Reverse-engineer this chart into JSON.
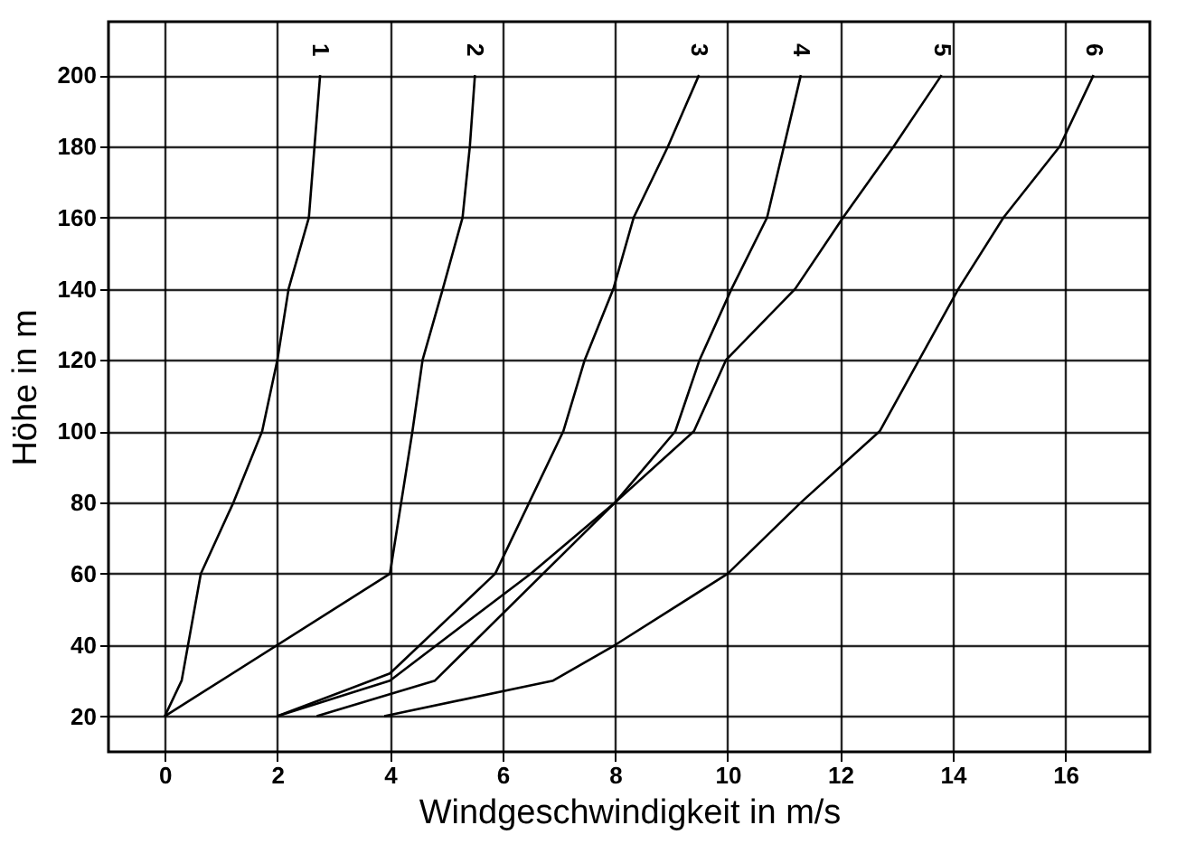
{
  "chart_data": {
    "type": "line",
    "xlabel": "Windgeschwindigkeit in m/s",
    "ylabel": "Höhe in m",
    "xlim": [
      -1,
      17.5
    ],
    "ylim": [
      10,
      215
    ],
    "xticks": [
      0,
      2,
      4,
      6,
      8,
      10,
      12,
      14,
      16
    ],
    "yticks": [
      20,
      40,
      60,
      80,
      100,
      120,
      140,
      160,
      180,
      200
    ],
    "grid": true,
    "legend": false,
    "line_style": "solid",
    "series": [
      {
        "name": "1",
        "color": "#000000",
        "x": [
          0,
          0.3,
          0.64,
          1.22,
          1.73,
          2.0,
          2.2,
          2.56,
          2.76
        ],
        "values": [
          20,
          30,
          60,
          80,
          100,
          120,
          140,
          160,
          200
        ]
      },
      {
        "name": "2",
        "color": "#000000",
        "x": [
          0,
          4.0,
          4.4,
          4.58,
          4.94,
          5.29,
          5.42,
          5.51
        ],
        "values": [
          20,
          60,
          100,
          120,
          140,
          160,
          180,
          200
        ]
      },
      {
        "name": "3",
        "color": "#000000",
        "x": [
          2.0,
          4.0,
          5.87,
          7.08,
          7.46,
          7.97,
          8.33,
          8.94,
          9.49
        ],
        "values": [
          20,
          32,
          60,
          100,
          120,
          140,
          160,
          180,
          200
        ]
      },
      {
        "name": "4",
        "color": "#000000",
        "x": [
          2.0,
          4.0,
          6.5,
          8.0,
          9.07,
          9.5,
          10.07,
          10.7,
          11.3
        ],
        "values": [
          20,
          30,
          60,
          80,
          100,
          120,
          140,
          160,
          200
        ]
      },
      {
        "name": "5",
        "color": "#000000",
        "x": [
          2.7,
          4.8,
          8.0,
          9.4,
          9.97,
          11.2,
          12.05,
          12.95,
          13.8
        ],
        "values": [
          20,
          30,
          80,
          100,
          120,
          140,
          160,
          180,
          200
        ]
      },
      {
        "name": "6",
        "color": "#000000",
        "x": [
          3.9,
          6.9,
          8.0,
          10.0,
          11.3,
          12.7,
          13.4,
          14.1,
          14.9,
          15.9,
          16.5
        ],
        "values": [
          20,
          30,
          40,
          60,
          80,
          100,
          120,
          140,
          160,
          180,
          200
        ]
      }
    ]
  }
}
